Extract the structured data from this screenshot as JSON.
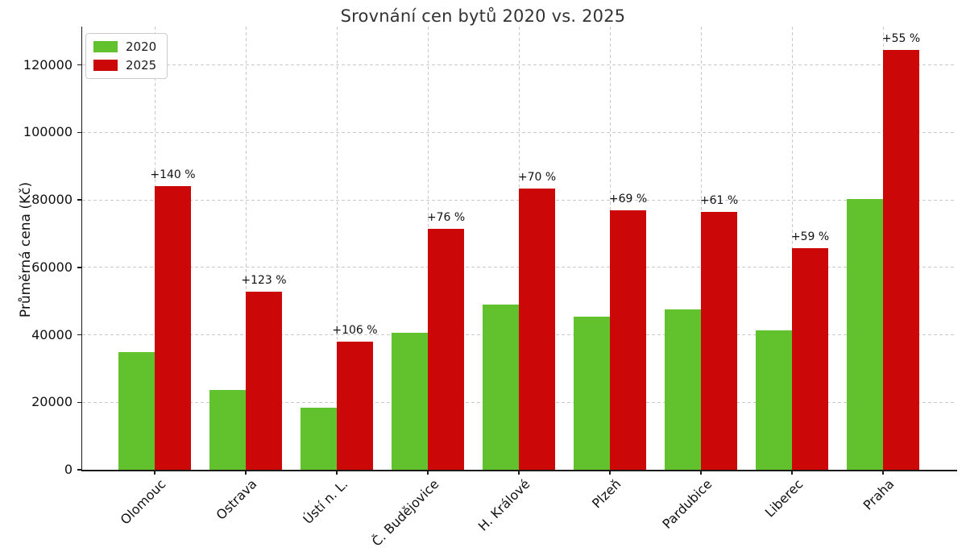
{
  "figure": {
    "title": "Srovnání cen bytů 2020 vs. 2025",
    "ylabel": "Průměrná cena (Kč)"
  },
  "legend": {
    "entries": [
      {
        "label": "2020",
        "color": "#62c22e"
      },
      {
        "label": "2025",
        "color": "#cc0707"
      }
    ]
  },
  "colors": {
    "green_2020": "#62c22e",
    "red_2025": "#cc0707",
    "grid": "#c9c9c9",
    "axis": "#1a1a1a",
    "title_text": "#333333"
  },
  "chart_data": {
    "type": "bar",
    "title": "Srovnání cen bytů 2020 vs. 2025",
    "xlabel": "",
    "ylabel": "Průměrná cena (Kč)",
    "categories": [
      "Olomouc",
      "Ostrava",
      "Ústí n. L.",
      "Č. Budějovice",
      "H. Králové",
      "Plzeň",
      "Pardubice",
      "Liberec",
      "Praha"
    ],
    "series": [
      {
        "name": "2020",
        "color": "#62c22e",
        "values": [
          35000,
          23700,
          18400,
          40600,
          49000,
          45500,
          47500,
          41400,
          80300
        ]
      },
      {
        "name": "2025",
        "color": "#cc0707",
        "values": [
          84000,
          52900,
          37900,
          71500,
          83300,
          76900,
          76500,
          65800,
          124500
        ]
      }
    ],
    "annotations": [
      "+140 %",
      "+123 %",
      "+106 %",
      "+76 %",
      "+70 %",
      "+69 %",
      "+61 %",
      "+59 %",
      "+55 %"
    ],
    "yticks": [
      0,
      20000,
      40000,
      60000,
      80000,
      100000,
      120000
    ],
    "ylim": [
      0,
      131400
    ],
    "grid": "dashed, horizontal and vertical",
    "legend_position": "upper left",
    "bar_label_note": "percent growth labels above 2025 bars"
  }
}
